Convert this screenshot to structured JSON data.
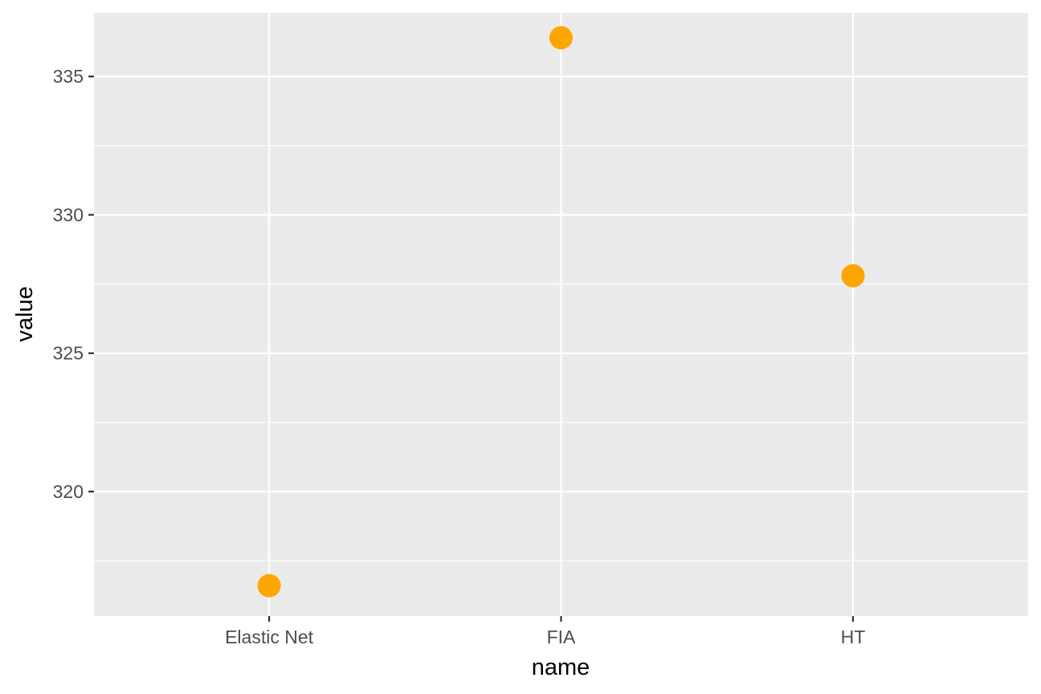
{
  "chart_data": {
    "type": "scatter",
    "categories": [
      "Elastic Net",
      "FIA",
      "HT"
    ],
    "values": [
      316.6,
      336.4,
      327.8
    ],
    "xlabel": "name",
    "ylabel": "value",
    "ylim": [
      315.5,
      337.3
    ],
    "yticks": [
      320,
      325,
      330,
      335
    ],
    "ytick_labels": [
      "320",
      "325",
      "330",
      "335"
    ],
    "grid": true,
    "legend": false,
    "colors": {
      "point": "#FFA500",
      "panel": "#EBEBEB",
      "grid": "#FFFFFF"
    }
  }
}
